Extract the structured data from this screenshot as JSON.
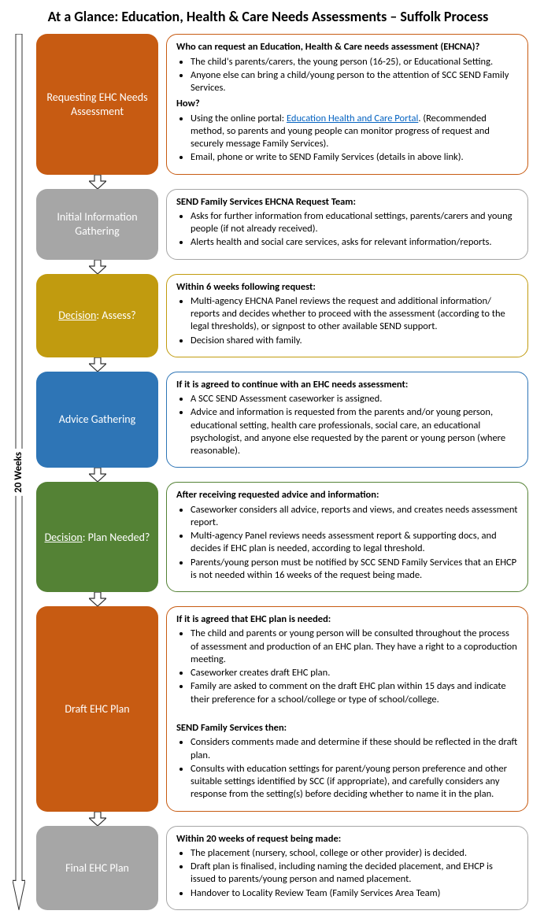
{
  "title": "At a Glance: Education, Health & Care Needs Assessments – Suffolk Process",
  "timeline_label": "20 Weeks",
  "colors": {
    "orange": "#C75B12",
    "grey": "#A6A6A6",
    "gold": "#C19B0F",
    "blue": "#2E75B6",
    "green": "#548235",
    "border_orange": "#C75B12",
    "border_grey": "#A6A6A6",
    "border_gold": "#C19B0F",
    "border_blue": "#2E75B6",
    "border_green": "#548235",
    "arrow_stroke": "#333333",
    "arrow_fill": "#ffffff"
  },
  "stages": [
    {
      "label": "Requesting EHC Needs Assessment",
      "bg": "orange",
      "border": "border_orange",
      "desc_html": "<span class='heading'>Who can request an Education, Health & Care needs assessment (EHCNA)?</span><ul><li>The child's parents/carers, the young person (16-25), or Educational Setting.</li><li>Anyone else can bring a child/young person to the attention of SCC SEND Family Services.</li></ul><span class='heading'>How?</span><ul><li>Using the online portal: <span class='link'>Education Health and Care Portal</span>. (Recommended method, so parents and young people can monitor progress of request and securely message Family Services).</li><li>Email, phone or write to SEND Family Services (details in above link).</li></ul>"
    },
    {
      "label": "Initial Information Gathering",
      "bg": "grey",
      "border": "border_grey",
      "desc_html": "<span class='heading'>SEND Family Services EHCNA Request Team:</span><ul><li>Asks for further information from educational settings, parents/carers and young people (if not already received).</li><li>Alerts health and social care services, asks for relevant information/reports.</li></ul>"
    },
    {
      "label_html": "<span class='underline'>Decision</span>: Assess?",
      "bg": "gold",
      "border": "border_gold",
      "desc_html": "<span class='heading'>Within 6 weeks following request:</span><ul><li>Multi-agency EHCNA Panel reviews the request and additional information/ reports and decides whether to proceed with the assessment (according to the legal thresholds), or signpost to other available SEND support.</li><li>Decision shared with family.</li></ul>"
    },
    {
      "label": "Advice Gathering",
      "bg": "blue",
      "border": "border_blue",
      "desc_html": "<span class='heading'>If it is agreed to continue with an EHC needs assessment:</span><ul><li>A SCC SEND Assessment caseworker is assigned.</li><li>Advice and information is requested from the parents and/or young person, educational setting, health care professionals, social care, an educational psychologist, and anyone else requested by the parent or young person (where reasonable).</li></ul>"
    },
    {
      "label_html": "<span class='underline'>Decision</span>: Plan Needed?",
      "bg": "green",
      "border": "border_green",
      "desc_html": "<span class='heading'>After receiving requested advice and information:</span><ul><li>Caseworker considers all advice, reports and views, and creates needs assessment report.</li><li>Multi-agency Panel reviews needs assessment report & supporting docs, and decides if EHC plan is needed, according to legal threshold.</li><li>Parents/young person must be notified by SCC SEND Family Services that an EHCP is not needed within 16 weeks of the request being made.</li></ul>"
    },
    {
      "label": "Draft EHC Plan",
      "bg": "orange",
      "border": "border_orange",
      "desc_html": "<span class='heading'>If it is agreed that EHC plan is needed:</span><ul><li>The child and parents or young person will be consulted throughout the process of assessment and production of an EHC plan. They have a right to a coproduction meeting.</li><li>Caseworker creates draft EHC plan.</li><li>Family are asked to comment on the draft EHC plan within 15 days and indicate their preference for a school/college or type of school/college.</li></ul><br><span class='heading'>SEND Family Services then:</span><ul><li>Considers comments made and determine if these should be reflected in the draft plan.</li><li>Consults with education settings for parent/young person preference and other suitable settings identified by SCC (if appropriate), and carefully considers any response from the setting(s) before deciding whether to name it in the plan.</li></ul>"
    },
    {
      "label": "Final EHC Plan",
      "bg": "grey",
      "border": "border_grey",
      "desc_html": "<span class='heading'>Within 20 weeks of request being made:</span><ul><li>The placement (nursery, school, college or other provider) is decided.</li><li>Draft plan is finalised, including naming the decided placement, and EHCP is issued to parents/young person and named placement.</li><li>Handover to Locality Review Team (Family Services Area Team)</li></ul>"
    }
  ]
}
